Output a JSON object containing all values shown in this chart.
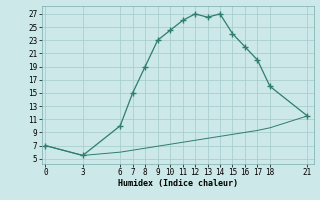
{
  "xlabel": "Humidex (Indice chaleur)",
  "line1_x": [
    0,
    3,
    6,
    7,
    8,
    9,
    10,
    11,
    12,
    13,
    14,
    15,
    16,
    17,
    18,
    21
  ],
  "line1_y": [
    7,
    5.5,
    10,
    15,
    19,
    23,
    24.5,
    26,
    27,
    26.5,
    27,
    24,
    22,
    20,
    16,
    11.5
  ],
  "line2_x": [
    0,
    3,
    6,
    7,
    8,
    9,
    10,
    11,
    12,
    13,
    14,
    15,
    16,
    17,
    18,
    21
  ],
  "line2_y": [
    7,
    5.5,
    6.0,
    6.3,
    6.6,
    6.9,
    7.2,
    7.5,
    7.8,
    8.1,
    8.4,
    8.7,
    9.0,
    9.3,
    9.7,
    11.5
  ],
  "line_color": "#2e7d6e",
  "bg_color": "#cce8e8",
  "grid_color": "#aacece",
  "yticks": [
    5,
    7,
    9,
    11,
    13,
    15,
    17,
    19,
    21,
    23,
    25,
    27
  ],
  "xticks": [
    0,
    3,
    6,
    7,
    8,
    9,
    10,
    11,
    12,
    13,
    14,
    15,
    16,
    17,
    18,
    21
  ],
  "xlim": [
    -0.3,
    21.5
  ],
  "ylim": [
    4.2,
    28.2
  ]
}
